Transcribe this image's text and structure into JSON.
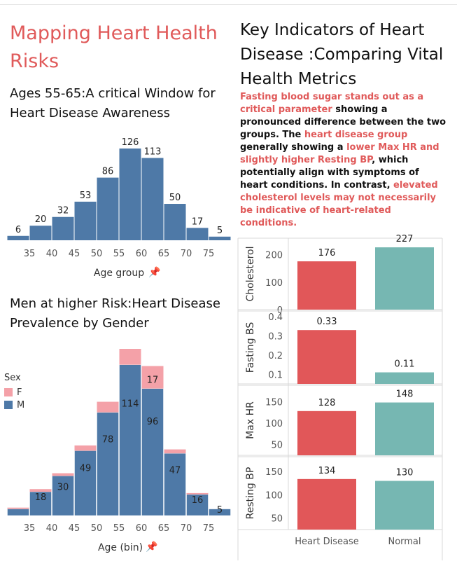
{
  "main_title": "Mapping Heart Health Risks",
  "age_section": {
    "title": "Ages 55-65:A critical Window for Heart Disease Awareness"
  },
  "gender_section": {
    "title": "Men at higher Risk:Heart Disease Prevalence by Gender"
  },
  "right_section": {
    "title": "Key Indicators of Heart Disease :Comparing Vital Health Metrics",
    "insight": [
      {
        "text": "Fasting blood sugar stands out as a critical parameter",
        "hl": true
      },
      {
        "text": " showing a pronounced difference between the two groups. The ",
        "hl": false
      },
      {
        "text": "heart disease group",
        "hl": true
      },
      {
        "text": " generally showing a ",
        "hl": false
      },
      {
        "text": "lower Max HR and slightly higher Resting BP",
        "hl": true
      },
      {
        "text": ", which potentially align with symptoms of heart conditions. In contrast, ",
        "hl": false
      },
      {
        "text": "elevated cholesterol levels may not necessarily be indicative of heart-related conditions.",
        "hl": true
      }
    ]
  },
  "colors": {
    "blue": "#4e79a7",
    "pink": "#f4a1a8",
    "red": "#e15759",
    "teal": "#76b7b2",
    "title_red": "#e05a5a"
  },
  "chart_data": [
    {
      "type": "bar",
      "xlabel": "Age group",
      "x_bins": [
        30,
        35,
        40,
        45,
        50,
        55,
        60,
        65,
        70,
        75
      ],
      "bin_width": 5,
      "x_tick_labels": [
        "35",
        "40",
        "45",
        "50",
        "55",
        "60",
        "65",
        "70",
        "75"
      ],
      "values": [
        6,
        20,
        32,
        53,
        86,
        126,
        113,
        50,
        17,
        5
      ],
      "ylim": [
        0,
        130
      ]
    },
    {
      "type": "bar",
      "stacked": true,
      "xlabel": "Age (bin)",
      "legend": {
        "title": "Sex",
        "position": "left",
        "items": [
          "F",
          "M"
        ]
      },
      "x_bins": [
        30,
        35,
        40,
        45,
        50,
        55,
        60,
        65,
        70,
        75
      ],
      "bin_width": 5,
      "x_tick_labels": [
        "35",
        "40",
        "45",
        "50",
        "55",
        "60",
        "65",
        "70",
        "75"
      ],
      "series": [
        {
          "name": "M",
          "values": [
            5,
            18,
            30,
            49,
            78,
            114,
            96,
            47,
            16,
            5
          ]
        },
        {
          "name": "F",
          "values": [
            1,
            2,
            2,
            4,
            8,
            12,
            17,
            3,
            1,
            0
          ]
        }
      ],
      "labeled_values": {
        "M": [
          null,
          18,
          30,
          49,
          78,
          114,
          96,
          47,
          16,
          5
        ],
        "F": [
          null,
          null,
          null,
          null,
          null,
          null,
          17,
          null,
          null,
          null
        ]
      },
      "ylim": [
        0,
        135
      ]
    },
    {
      "type": "bar",
      "categories": [
        "Heart Disease",
        "Normal"
      ],
      "panels": [
        {
          "ylabel": "Cholesterol",
          "values": [
            176,
            227
          ],
          "ylim": [
            0,
            240
          ],
          "ticks": [
            "0",
            "100",
            "200"
          ],
          "tick_values": [
            0,
            100,
            200
          ],
          "value_labels": [
            "176",
            "227"
          ]
        },
        {
          "ylabel": "Fasting BS",
          "values": [
            0.33,
            0.11
          ],
          "ylim": [
            0.05,
            0.4
          ],
          "ticks": [
            "0.1",
            "0.2",
            "0.3",
            "0.4"
          ],
          "tick_values": [
            0.1,
            0.2,
            0.3,
            0.4
          ],
          "value_labels": [
            "0.33",
            "0.11"
          ]
        },
        {
          "ylabel": "Max HR",
          "values": [
            128,
            148
          ],
          "ylim": [
            25,
            175
          ],
          "ticks": [
            "50",
            "100",
            "150"
          ],
          "tick_values": [
            50,
            100,
            150
          ],
          "value_labels": [
            "128",
            "148"
          ]
        },
        {
          "ylabel": "Resting BP",
          "values": [
            134,
            130
          ],
          "ylim": [
            25,
            170
          ],
          "ticks": [
            "50",
            "100",
            "150"
          ],
          "tick_values": [
            50,
            100,
            150
          ],
          "value_labels": [
            "134",
            "130"
          ]
        }
      ]
    }
  ]
}
